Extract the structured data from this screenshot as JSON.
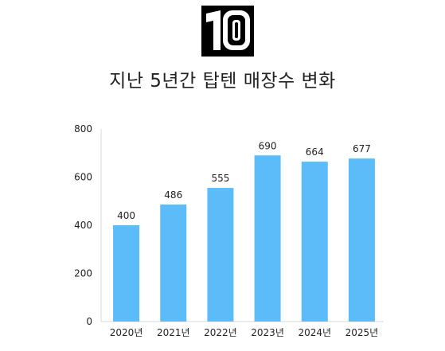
{
  "logo": {
    "text": "10",
    "icon": "top10-logo-icon",
    "background": "#000000",
    "foreground": "#ffffff"
  },
  "chart_data": {
    "type": "bar",
    "title": "지난 5년간 탑텐 매장수 변화",
    "categories": [
      "2020년",
      "2021년",
      "2022년",
      "2023년",
      "2024년",
      "2025년"
    ],
    "values": [
      400,
      486,
      555,
      690,
      664,
      677
    ],
    "data_labels": [
      "400",
      "486",
      "555",
      "690",
      "664",
      "677"
    ],
    "ylim": [
      0,
      800
    ],
    "yticks": [
      0,
      200,
      400,
      600,
      800
    ],
    "ytick_labels": [
      "0",
      "200",
      "400",
      "600",
      "800"
    ],
    "xlabel": "",
    "ylabel": "",
    "grid": false,
    "bar_color": "#5bbcf9",
    "axis_color": "#d9d9d9"
  }
}
